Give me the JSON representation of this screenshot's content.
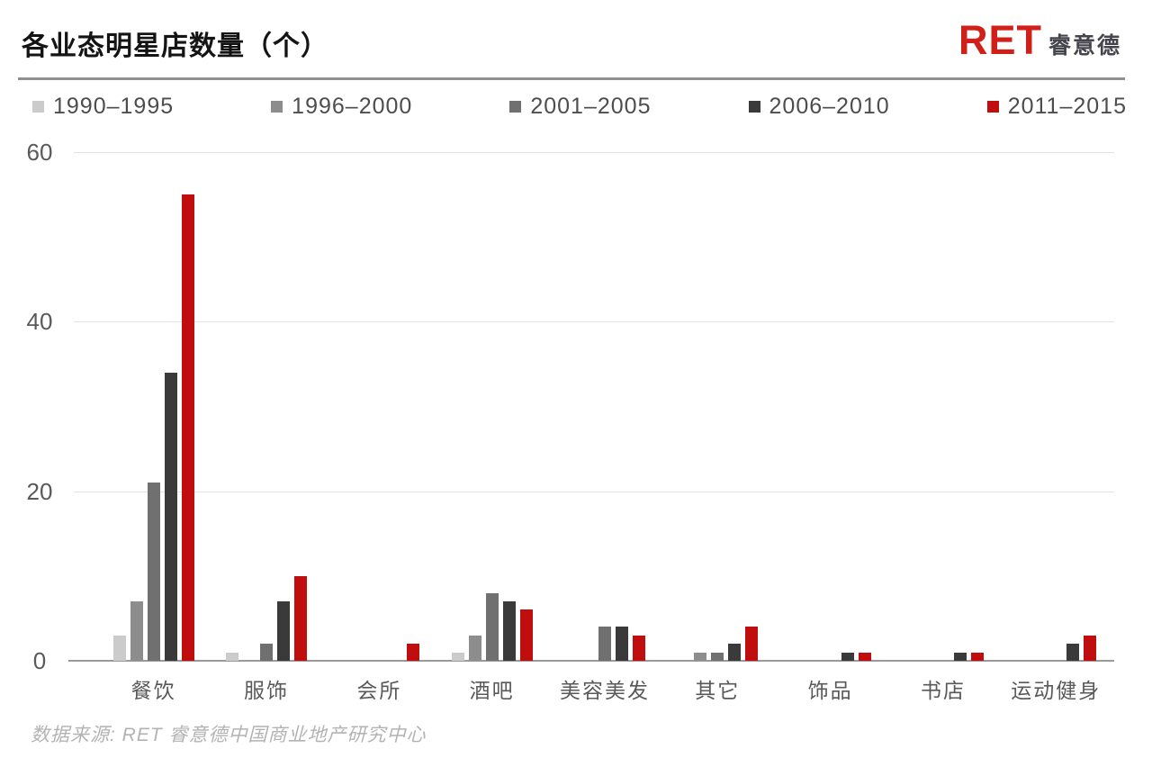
{
  "header": {
    "title": "各业态明星店数量（个）",
    "logo_text": "RET",
    "logo_suffix": "睿意德"
  },
  "chart_data": {
    "type": "bar",
    "title": "各业态明星店数量（个）",
    "categories": [
      "餐饮",
      "服饰",
      "会所",
      "酒吧",
      "美容美发",
      "其它",
      "饰品",
      "书店",
      "运动健身"
    ],
    "series": [
      {
        "name": "1990–1995",
        "color": "#cbcbcb",
        "values": [
          3,
          1,
          0,
          1,
          0,
          0,
          0,
          0,
          0
        ]
      },
      {
        "name": "1996–2000",
        "color": "#8d8d8d",
        "values": [
          7,
          0,
          0,
          3,
          0,
          1,
          0,
          0,
          0
        ]
      },
      {
        "name": "2001–2005",
        "color": "#707070",
        "values": [
          21,
          2,
          0,
          8,
          4,
          1,
          0,
          0,
          0
        ]
      },
      {
        "name": "2006–2010",
        "color": "#3a3a3a",
        "values": [
          34,
          7,
          0,
          7,
          4,
          2,
          1,
          1,
          2
        ]
      },
      {
        "name": "2011–2015",
        "color": "#c00d0d",
        "values": [
          55,
          10,
          2,
          6,
          3,
          4,
          1,
          1,
          3
        ]
      }
    ],
    "xlabel": "",
    "ylabel": "",
    "ylim": [
      0,
      60
    ],
    "yticks_top_to_bottom": [
      60,
      40,
      20,
      0
    ],
    "grid": true,
    "legend_position": "top"
  },
  "footer": {
    "source": "数据来源: RET 睿意德中国商业地产研究中心"
  }
}
